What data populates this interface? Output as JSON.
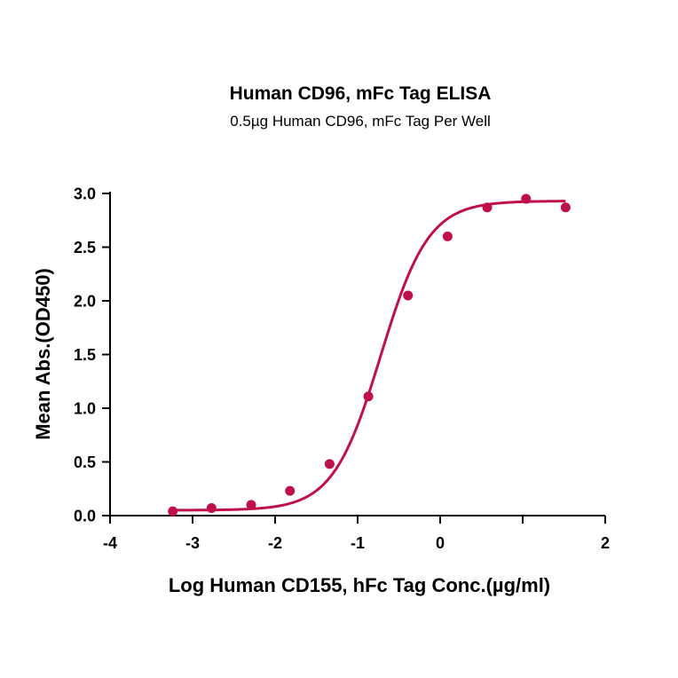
{
  "chart_data": {
    "type": "scatter",
    "title": "Human CD96, mFc Tag ELISA",
    "subtitle": "0.5µg Human CD96, mFc Tag Per Well",
    "xlabel": "Log Human CD155, hFc Tag Conc.(µg/ml)",
    "ylabel": "Mean Abs.(OD450)",
    "xlim": [
      -4,
      2
    ],
    "ylim": [
      0,
      3
    ],
    "x_ticks": [
      -4,
      -3,
      -2,
      -1,
      0,
      2
    ],
    "x_tick_labels": [
      "-4",
      "-3",
      "-2",
      "-1",
      "0",
      "2"
    ],
    "x_ticks_unlabeled": [
      1
    ],
    "y_ticks": [
      0,
      0.5,
      1.0,
      1.5,
      2.0,
      2.5,
      3.0
    ],
    "y_tick_labels": [
      "0.0",
      "0.5",
      "1.0",
      "1.5",
      "2.0",
      "2.5",
      "3.0"
    ],
    "grid": false,
    "series": [
      {
        "color": "#c0104a",
        "x": [
          -3.24,
          -2.77,
          -2.29,
          -1.82,
          -1.34,
          -0.87,
          -0.39,
          0.09,
          0.57,
          1.04,
          1.52
        ],
        "y": [
          0.04,
          0.07,
          0.1,
          0.23,
          0.48,
          1.11,
          2.05,
          2.6,
          2.87,
          2.95,
          2.87
        ]
      }
    ],
    "fit_curve": {
      "model": "four-parameter logistic",
      "bottom": 0.05,
      "top": 2.93,
      "log_ec50": -0.72,
      "hill_slope": 1.5,
      "x_range": [
        -3.24,
        1.52
      ]
    }
  }
}
